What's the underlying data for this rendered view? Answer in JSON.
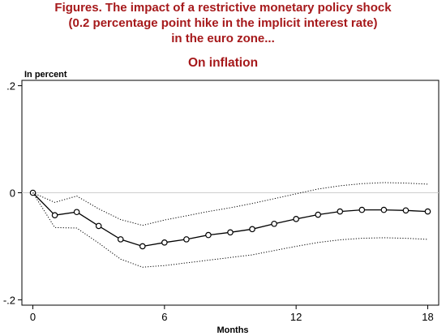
{
  "figure": {
    "title_lines": [
      "Figures. The impact of a restrictive monetary policy shock",
      "(0.2 percentage point hike in the implicit interest rate)",
      "in the euro zone..."
    ],
    "subtitle": "On inflation"
  },
  "chart_data": {
    "type": "line",
    "title": "On inflation",
    "ylabel": "In percent",
    "xlabel": "Months",
    "x": [
      0,
      1,
      2,
      3,
      4,
      5,
      6,
      7,
      8,
      9,
      10,
      11,
      12,
      13,
      14,
      15,
      16,
      17,
      18
    ],
    "xlim": [
      -0.5,
      18.5
    ],
    "ylim": [
      -0.21,
      0.21
    ],
    "x_ticks": [
      0,
      6,
      12,
      18
    ],
    "x_tick_labels": [
      "0",
      "6",
      "12",
      "18"
    ],
    "y_ticks": [
      0.2,
      0,
      -0.2
    ],
    "y_tick_labels": [
      ".2",
      "0",
      "-.2"
    ],
    "zero_line": true,
    "grid": false,
    "legend": "none",
    "series": [
      {
        "role": "response",
        "style": "solid-circles",
        "color": "#000000",
        "values": [
          0,
          -0.042,
          -0.036,
          -0.062,
          -0.087,
          -0.1,
          -0.093,
          -0.087,
          -0.079,
          -0.074,
          -0.068,
          -0.058,
          -0.049,
          -0.041,
          -0.035,
          -0.032,
          -0.032,
          -0.033,
          -0.035
        ]
      },
      {
        "role": "upper-band",
        "style": "dotted",
        "color": "#000000",
        "values": [
          0,
          -0.018,
          -0.006,
          -0.03,
          -0.05,
          -0.061,
          -0.051,
          -0.043,
          -0.035,
          -0.028,
          -0.02,
          -0.011,
          -0.002,
          0.007,
          0.013,
          0.017,
          0.019,
          0.018,
          0.016
        ]
      },
      {
        "role": "lower-band",
        "style": "dotted",
        "color": "#000000",
        "values": [
          0,
          -0.065,
          -0.066,
          -0.094,
          -0.124,
          -0.139,
          -0.136,
          -0.131,
          -0.126,
          -0.121,
          -0.116,
          -0.108,
          -0.1,
          -0.093,
          -0.088,
          -0.085,
          -0.084,
          -0.085,
          -0.087
        ]
      }
    ]
  }
}
